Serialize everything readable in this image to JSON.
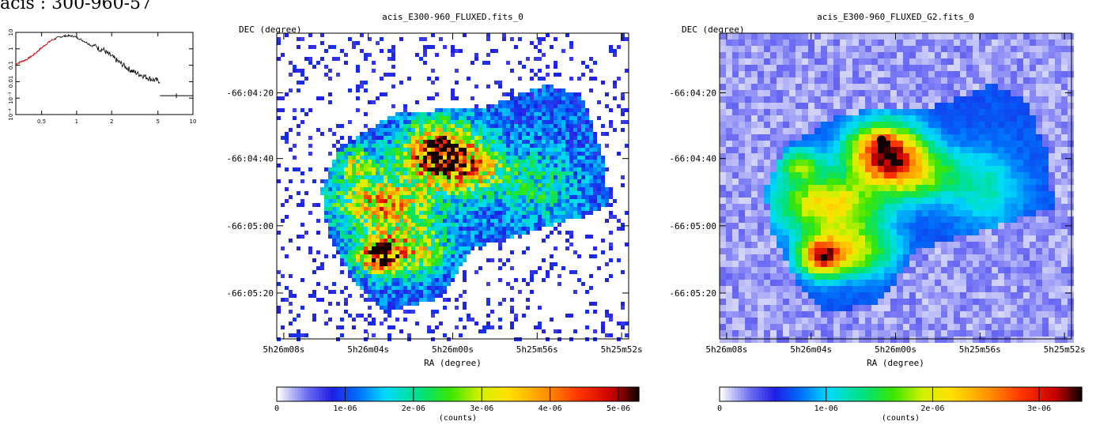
{
  "page_title": "acis : 300-960-57",
  "chart_data": [
    {
      "type": "line",
      "series": [
        {
          "values": [
            [
              0.3,
              0.12
            ],
            [
              0.33,
              0.16
            ],
            [
              0.37,
              0.22
            ],
            [
              0.42,
              0.4
            ],
            [
              0.48,
              0.9
            ],
            [
              0.55,
              2.0
            ],
            [
              0.62,
              3.6
            ],
            [
              0.7,
              5.0
            ],
            [
              0.78,
              6.0
            ],
            [
              0.85,
              6.2
            ],
            [
              0.95,
              5.8
            ],
            [
              1.05,
              4.2
            ],
            [
              1.15,
              3.0
            ],
            [
              1.25,
              2.2
            ],
            [
              1.35,
              1.5
            ],
            [
              1.45,
              1.7
            ],
            [
              1.55,
              1.0
            ],
            [
              1.7,
              0.9
            ],
            [
              1.85,
              0.5
            ],
            [
              2.0,
              0.35
            ],
            [
              2.2,
              0.2
            ],
            [
              2.4,
              0.13
            ],
            [
              2.7,
              0.07
            ],
            [
              3.0,
              0.045
            ],
            [
              3.4,
              0.03
            ],
            [
              3.8,
              0.022
            ],
            [
              4.3,
              0.015
            ],
            [
              4.8,
              0.012
            ],
            [
              5.2,
              0.011
            ]
          ]
        }
      ],
      "xscale": "log",
      "yscale": "log",
      "xlim": [
        0.3,
        10
      ],
      "ylim": [
        0.0001,
        10
      ],
      "xticks": [
        "0.5",
        "1",
        "2",
        "5",
        "10"
      ],
      "yticks": [
        "10⁻⁴",
        "10⁻³",
        "0.01",
        "0.1",
        "1",
        "10"
      ],
      "colors": {
        "low_energy": "#c81010",
        "spectrum": "#000000"
      }
    },
    {
      "type": "heatmap",
      "title": "acis_E300-960_FLUXED.fits_0",
      "xlabel": "RA (degree)",
      "ylabel": "DEC (degree)",
      "xticks": [
        "5h26m08s",
        "5h26m04s",
        "5h26m00s",
        "5h25m56s",
        "5h25m52s"
      ],
      "yticks": [
        "-66:04:20",
        "-66:04:40",
        "-66:05:00",
        "-66:05:20"
      ],
      "colorbar": {
        "range": [
          0,
          5.3e-06
        ],
        "tick_values": [
          0,
          1e-06,
          2e-06,
          3e-06,
          4e-06,
          5e-06
        ],
        "tick_labels": [
          "0",
          "1e-06",
          "2e-06",
          "3e-06",
          "4e-06",
          "5e-06"
        ],
        "label": "(counts)"
      },
      "style": "noisy"
    },
    {
      "type": "heatmap",
      "title": "acis_E300-960_FLUXED_G2.fits_0",
      "xlabel": "RA (degree)",
      "ylabel": "DEC (degree)",
      "xticks": [
        "5h26m08s",
        "5h26m04s",
        "5h26m00s",
        "5h25m56s",
        "5h25m52s"
      ],
      "yticks": [
        "-66:04:20",
        "-66:04:40",
        "-66:05:00",
        "-66:05:20"
      ],
      "colorbar": {
        "range": [
          0,
          3.4e-06
        ],
        "tick_values": [
          0,
          1e-06,
          2e-06,
          3e-06
        ],
        "tick_labels": [
          "0",
          "1e-06",
          "2e-06",
          "3e-06"
        ],
        "label": "(counts)"
      },
      "style": "smoothed"
    }
  ]
}
